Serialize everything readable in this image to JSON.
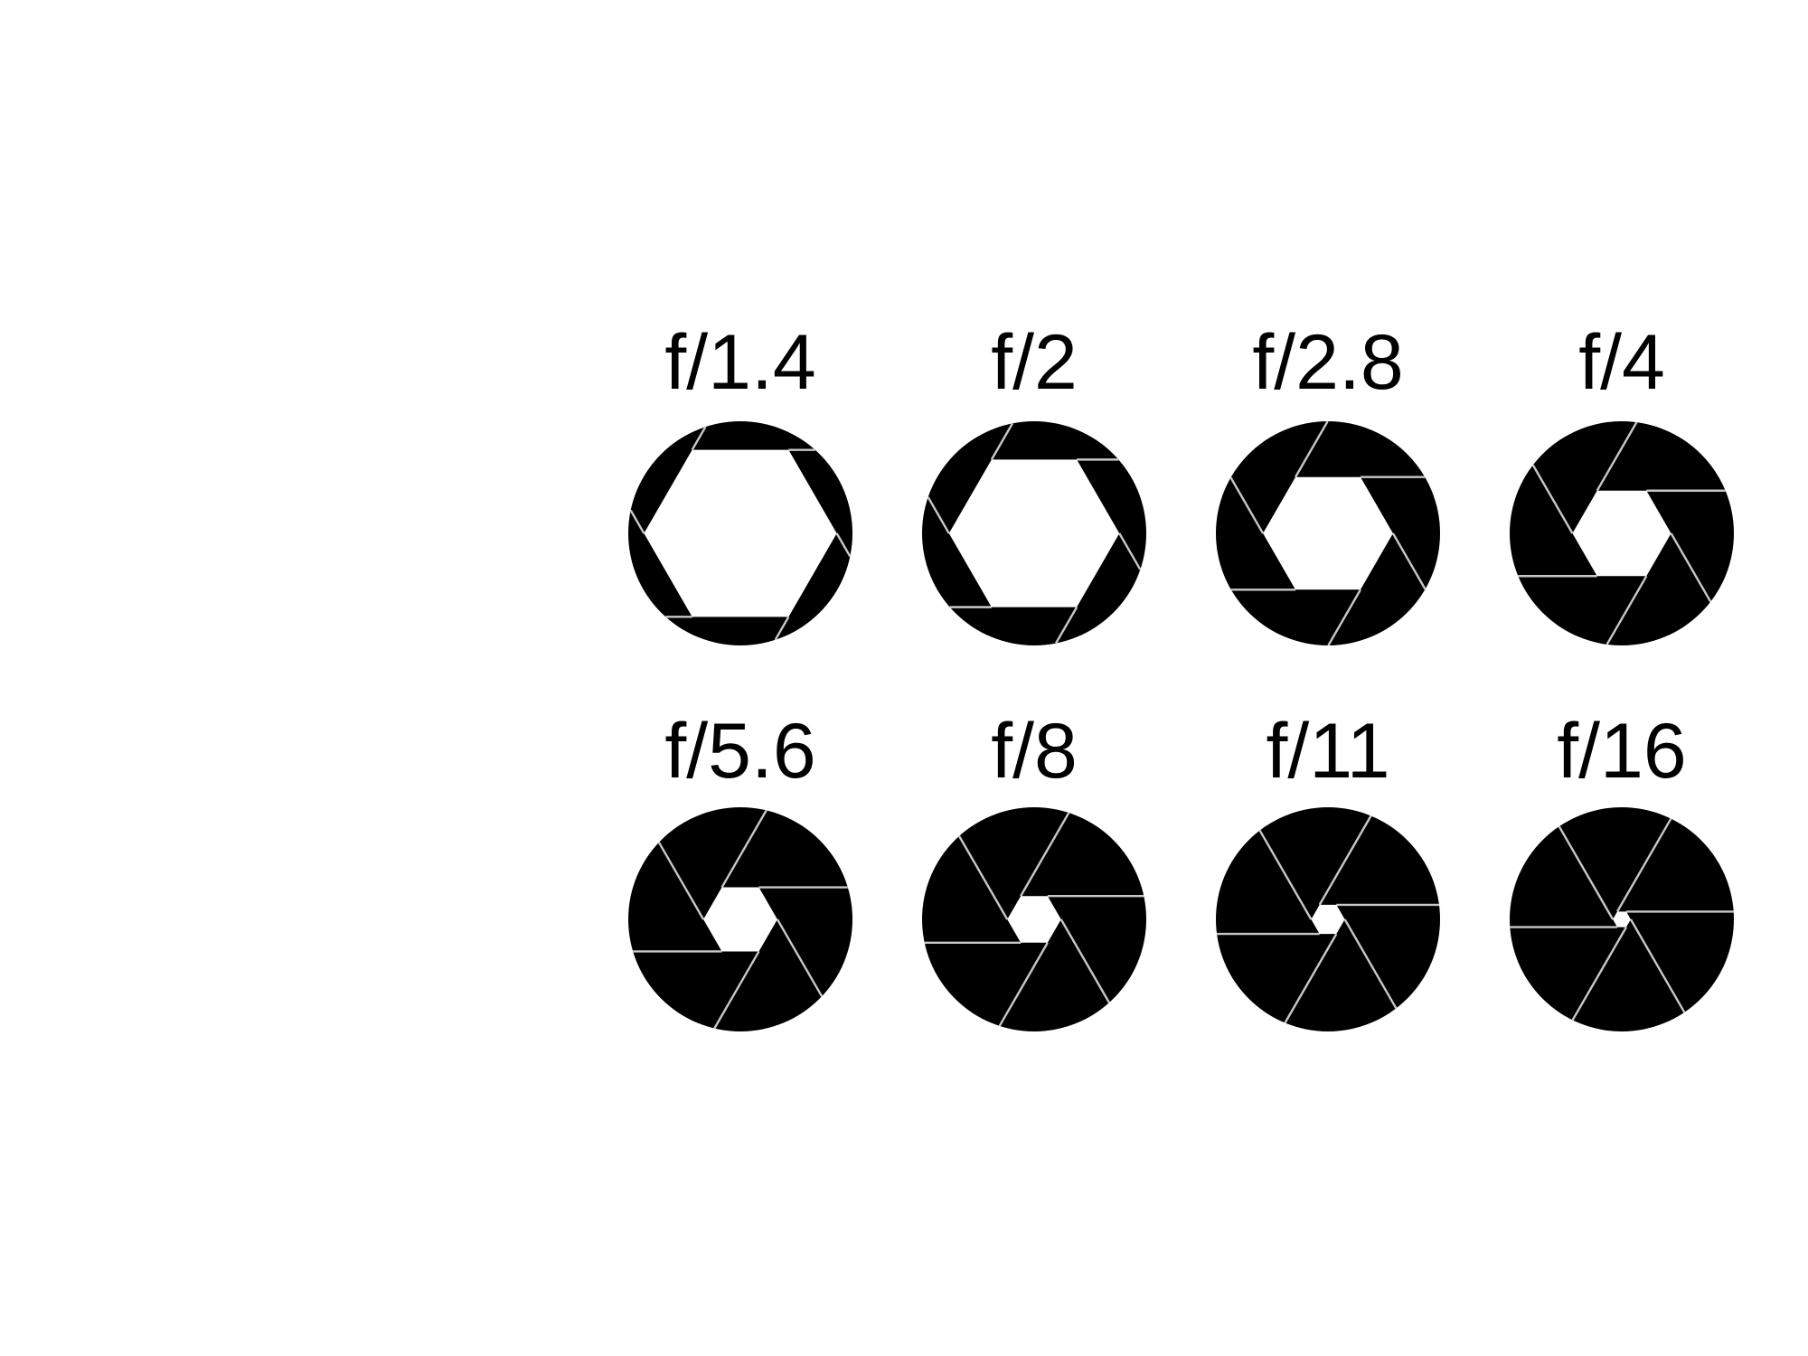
{
  "colors": {
    "background": "#ffffff",
    "blade": "#000000",
    "blade_seam": "#c8c8c8"
  },
  "icon": "aperture-icon",
  "apertures": [
    {
      "label": "f/1.4",
      "opening": 0.86
    },
    {
      "label": "f/2",
      "opening": 0.76
    },
    {
      "label": "f/2.8",
      "opening": 0.58
    },
    {
      "label": "f/4",
      "opening": 0.44
    },
    {
      "label": "f/5.6",
      "opening": 0.33
    },
    {
      "label": "f/8",
      "opening": 0.24
    },
    {
      "label": "f/11",
      "opening": 0.15
    },
    {
      "label": "f/16",
      "opening": 0.08
    }
  ]
}
